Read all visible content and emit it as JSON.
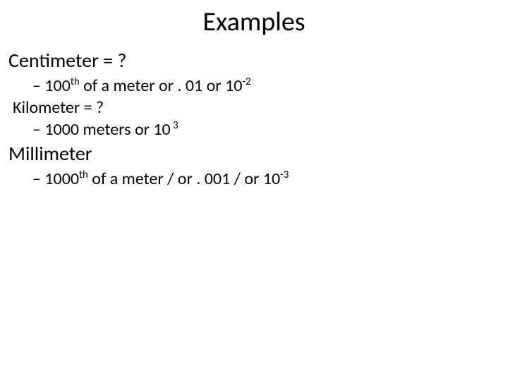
{
  "title": "Examples",
  "lines": {
    "centimeter_term": "Centimeter = ?",
    "centimeter_dash": "– 100",
    "centimeter_sup1": "th",
    "centimeter_mid": " of a meter or . 01 or 10",
    "centimeter_sup2": "-2",
    "kilometer_term": "Kilometer = ?",
    "kilometer_dash": "– 1000 meters or 10",
    "kilometer_sup": " 3",
    "millimeter_term": "Millimeter",
    "millimeter_dash": "– 1000",
    "millimeter_sup1": "th",
    "millimeter_mid": " of a meter  / or . 001 / or 10",
    "millimeter_sup2": "-3"
  },
  "colors": {
    "text": "#000000",
    "background": "#ffffff"
  },
  "typography": {
    "title_fontsize": 38,
    "term_fontsize": 28,
    "def_fontsize": 24,
    "font_family": "Calibri"
  }
}
